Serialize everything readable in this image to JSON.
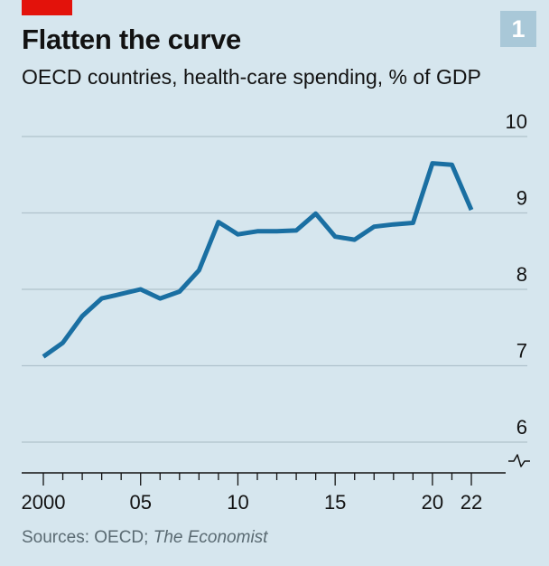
{
  "header": {
    "title": "Flatten the curve",
    "subtitle": "OECD countries, health-care spending, % of GDP",
    "badge": "1"
  },
  "footer": {
    "source_prefix": "Sources: OECD; ",
    "source_italic": "The Economist"
  },
  "colors": {
    "background": "#d6e6ee",
    "line": "#1a6fa2",
    "gridline": "#b0c2cc",
    "accent_tab": "#e3120b",
    "badge": "#a9c8d8"
  },
  "chart_data": {
    "type": "line",
    "title": "Flatten the curve",
    "subtitle": "OECD countries, health-care spending, % of GDP",
    "xlabel": "",
    "ylabel": "",
    "x": [
      2000,
      2001,
      2002,
      2003,
      2004,
      2005,
      2006,
      2007,
      2008,
      2009,
      2010,
      2011,
      2012,
      2013,
      2014,
      2015,
      2016,
      2017,
      2018,
      2019,
      2020,
      2021,
      2022
    ],
    "series": [
      {
        "values": [
          7.12,
          7.3,
          7.65,
          7.88,
          7.94,
          8.0,
          7.88,
          7.97,
          8.25,
          8.88,
          8.72,
          8.76,
          8.76,
          8.77,
          8.99,
          8.69,
          8.65,
          8.82,
          8.85,
          8.87,
          9.65,
          9.63,
          9.04
        ]
      }
    ],
    "xlim": [
      1999.8,
      2022.2
    ],
    "ylim": [
      6,
      10
    ],
    "x_ticks": [
      2000,
      2005,
      2010,
      2015,
      2020,
      2022
    ],
    "x_tick_labels": [
      "2000",
      "05",
      "10",
      "15",
      "20",
      "22"
    ],
    "y_ticks": [
      6,
      7,
      8,
      9,
      10
    ],
    "y_tick_labels": [
      "6",
      "7",
      "8",
      "9",
      "10"
    ],
    "y_axis_break": true,
    "grid": true
  }
}
